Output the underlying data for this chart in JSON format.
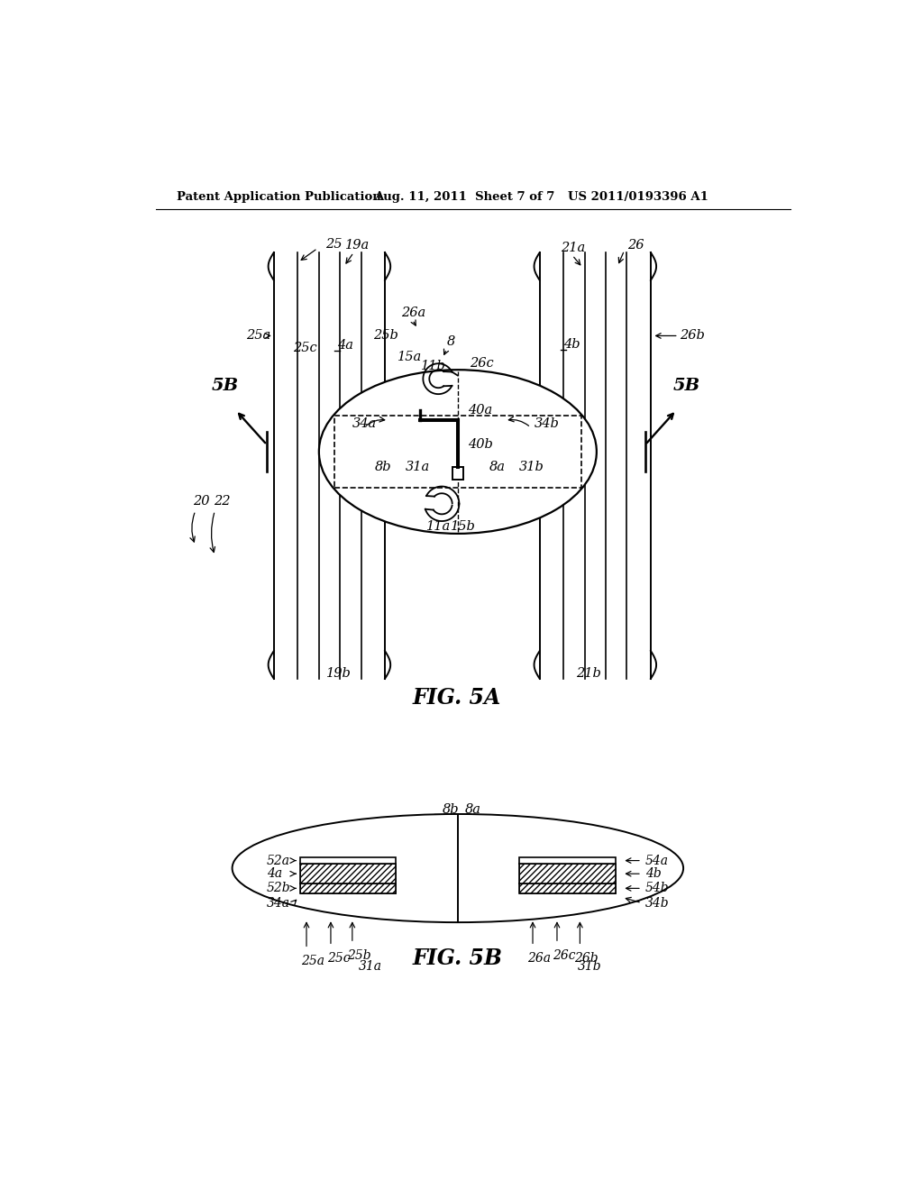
{
  "bg_color": "#ffffff",
  "header_left": "Patent Application Publication",
  "header_mid": "Aug. 11, 2011  Sheet 7 of 7",
  "header_right": "US 2011/0193396 A1",
  "fig5a_label": "FIG. 5A",
  "fig5b_label": "FIG. 5B"
}
